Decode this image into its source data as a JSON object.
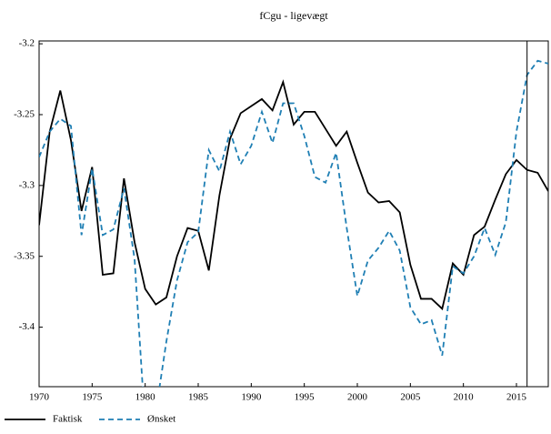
{
  "chart_data": {
    "type": "line",
    "title": "fCgu - ligevægt",
    "x": [
      1970,
      1971,
      1972,
      1973,
      1974,
      1975,
      1976,
      1977,
      1978,
      1979,
      1980,
      1981,
      1982,
      1983,
      1984,
      1985,
      1986,
      1987,
      1988,
      1989,
      1990,
      1991,
      1992,
      1993,
      1994,
      1995,
      1996,
      1997,
      1998,
      1999,
      2000,
      2001,
      2002,
      2003,
      2004,
      2005,
      2006,
      2007,
      2008,
      2009,
      2010,
      2011,
      2012,
      2013,
      2014,
      2015,
      2016,
      2017,
      2018
    ],
    "series": [
      {
        "name": "Faktisk",
        "color": "#000000",
        "dash": false,
        "values": [
          -3.328,
          -3.262,
          -3.233,
          -3.268,
          -3.318,
          -3.287,
          -3.363,
          -3.362,
          -3.295,
          -3.34,
          -3.373,
          -3.384,
          -3.379,
          -3.35,
          -3.33,
          -3.332,
          -3.36,
          -3.307,
          -3.267,
          -3.249,
          -3.244,
          -3.239,
          -3.247,
          -3.227,
          -3.257,
          -3.248,
          -3.248,
          -3.26,
          -3.272,
          -3.262,
          -3.284,
          -3.305,
          -3.312,
          -3.311,
          -3.319,
          -3.356,
          -3.38,
          -3.38,
          -3.387,
          -3.355,
          -3.363,
          -3.335,
          -3.329,
          -3.31,
          -3.292,
          -3.282,
          -3.289,
          -3.291,
          -3.304
        ]
      },
      {
        "name": "Ønsket",
        "color": "#1f7fb4",
        "dash": true,
        "values": [
          -3.28,
          -3.262,
          -3.253,
          -3.258,
          -3.335,
          -3.288,
          -3.335,
          -3.331,
          -3.302,
          -3.352,
          -3.47,
          -3.46,
          -3.41,
          -3.367,
          -3.34,
          -3.333,
          -3.275,
          -3.29,
          -3.262,
          -3.285,
          -3.272,
          -3.248,
          -3.27,
          -3.242,
          -3.242,
          -3.265,
          -3.294,
          -3.298,
          -3.277,
          -3.33,
          -3.378,
          -3.353,
          -3.344,
          -3.332,
          -3.346,
          -3.386,
          -3.398,
          -3.395,
          -3.42,
          -3.357,
          -3.362,
          -3.35,
          -3.33,
          -3.349,
          -3.326,
          -3.262,
          -3.222,
          -3.212,
          -3.214
        ]
      }
    ],
    "xlim": [
      1970,
      2018
    ],
    "ylim": [
      -3.442,
      -3.198
    ],
    "xticks": [
      1970,
      1975,
      1980,
      1985,
      1990,
      1995,
      2000,
      2005,
      2010,
      2015
    ],
    "yticks": [
      -3.4,
      -3.35,
      -3.3,
      -3.25,
      -3.2
    ],
    "vlines": [
      2016
    ]
  }
}
